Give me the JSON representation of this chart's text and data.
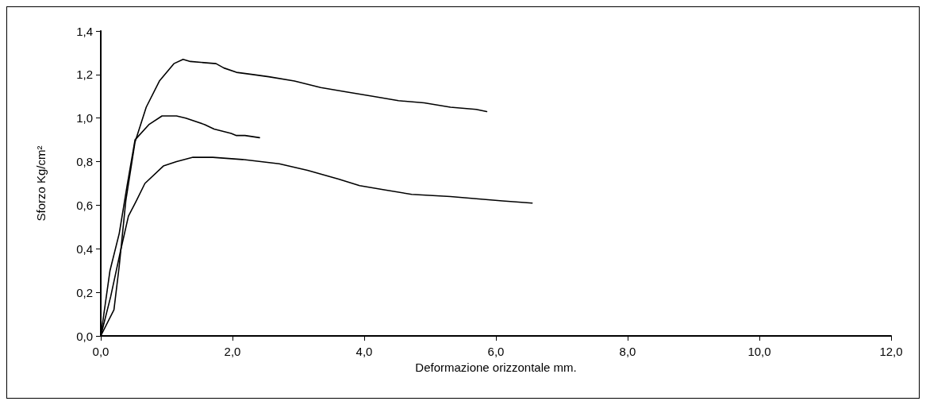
{
  "chart_data": {
    "type": "line",
    "xlabel": "Deformazione orizzontale mm.",
    "ylabel": "Sforzo Kg/cm²",
    "xlim": [
      0,
      12
    ],
    "ylim": [
      0,
      1.4
    ],
    "xticks": [
      {
        "value": 0,
        "label": "0,0"
      },
      {
        "value": 2,
        "label": "2,0"
      },
      {
        "value": 4,
        "label": "4,0"
      },
      {
        "value": 6,
        "label": "6,0"
      },
      {
        "value": 8,
        "label": "8,0"
      },
      {
        "value": 10,
        "label": "10,0"
      },
      {
        "value": 12,
        "label": "12,0"
      }
    ],
    "yticks": [
      {
        "value": 0,
        "label": "0,0"
      },
      {
        "value": 0.2,
        "label": "0,2"
      },
      {
        "value": 0.4,
        "label": "0,4"
      },
      {
        "value": 0.6,
        "label": "0,6"
      },
      {
        "value": 0.8,
        "label": "0,8"
      },
      {
        "value": 1.0,
        "label": "1,0"
      },
      {
        "value": 1.2,
        "label": "1,2"
      },
      {
        "value": 1.4,
        "label": "1,4"
      }
    ],
    "marker": "none",
    "line_style": "solid",
    "series": [
      {
        "color": "#000000",
        "x": [
          0,
          0.2,
          0.28,
          0.38,
          0.52,
          0.69,
          0.89,
          1.11,
          1.25,
          1.36,
          1.75,
          1.87,
          2.06,
          2.31,
          2.55,
          2.94,
          3.34,
          3.73,
          4.13,
          4.52,
          4.91,
          5.31,
          5.7,
          5.86
        ],
        "values": [
          0,
          0.12,
          0.32,
          0.62,
          0.89,
          1.05,
          1.17,
          1.25,
          1.27,
          1.26,
          1.25,
          1.23,
          1.21,
          1.2,
          1.19,
          1.17,
          1.14,
          1.12,
          1.1,
          1.08,
          1.07,
          1.05,
          1.04,
          1.03
        ]
      },
      {
        "color": "#000000",
        "x": [
          0,
          0.14,
          0.28,
          0.4,
          0.52,
          0.73,
          0.93,
          1.15,
          1.29,
          1.58,
          1.72,
          1.98,
          2.06,
          2.19,
          2.41
        ],
        "values": [
          0,
          0.3,
          0.47,
          0.69,
          0.9,
          0.97,
          1.01,
          1.01,
          1.0,
          0.97,
          0.95,
          0.93,
          0.92,
          0.92,
          0.91
        ]
      },
      {
        "color": "#000000",
        "x": [
          0,
          0.15,
          0.3,
          0.42,
          0.54,
          0.67,
          0.95,
          1.15,
          1.4,
          1.7,
          2.15,
          2.71,
          3.14,
          3.61,
          3.93,
          4.32,
          4.72,
          5.31,
          5.7,
          6.1,
          6.55
        ],
        "values": [
          0,
          0.18,
          0.39,
          0.55,
          0.62,
          0.7,
          0.78,
          0.8,
          0.82,
          0.82,
          0.81,
          0.79,
          0.76,
          0.72,
          0.69,
          0.67,
          0.65,
          0.64,
          0.63,
          0.62,
          0.61
        ]
      }
    ]
  }
}
